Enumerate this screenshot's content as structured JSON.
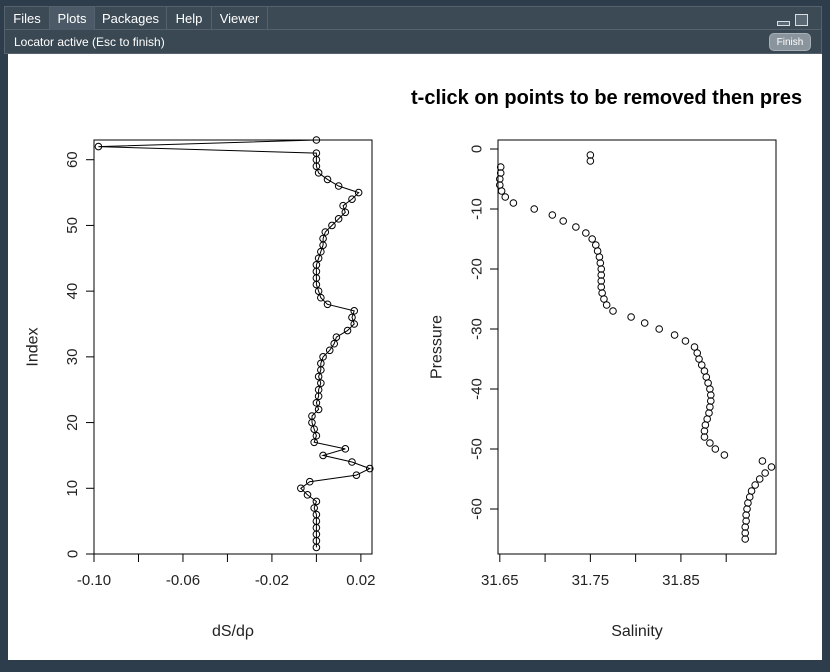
{
  "tabs": [
    {
      "label": "Files",
      "active": false
    },
    {
      "label": "Plots",
      "active": true
    },
    {
      "label": "Packages",
      "active": false
    },
    {
      "label": "Help",
      "active": false
    },
    {
      "label": "Viewer",
      "active": false
    }
  ],
  "status": {
    "text": "Locator active (Esc to finish)",
    "finish_label": "Finish"
  },
  "plot_title": "t-click on points to be removed then pres",
  "colors": {
    "window_bg": "#2d3d4b",
    "tab_active": "#4b5a66",
    "plot_bg": "#ffffff"
  },
  "icons": [
    "minimize-icon",
    "maximize-icon"
  ],
  "chart_data": [
    {
      "type": "line",
      "markers": "open-circle",
      "xlabel": "dS/dρ",
      "ylabel": "Index",
      "xlim": [
        -0.1,
        0.025
      ],
      "ylim": [
        0,
        63
      ],
      "xticks": [
        -0.1,
        -0.06,
        -0.02,
        0.02
      ],
      "xtick_labels": [
        "-0.10",
        "-0.06",
        "-0.02",
        "0.02"
      ],
      "yticks": [
        0,
        10,
        20,
        30,
        40,
        50,
        60
      ],
      "ytick_labels": [
        "0",
        "10",
        "20",
        "30",
        "40",
        "50",
        "60"
      ],
      "minor_xticks": [
        -0.08,
        -0.04,
        0.0
      ],
      "points": [
        [
          0.0,
          1
        ],
        [
          0.0,
          2
        ],
        [
          0.0,
          3
        ],
        [
          0.0,
          4
        ],
        [
          0.0,
          5
        ],
        [
          0.0,
          6
        ],
        [
          -0.001,
          7
        ],
        [
          0.0,
          8
        ],
        [
          -0.004,
          9
        ],
        [
          -0.007,
          10
        ],
        [
          -0.003,
          11
        ],
        [
          0.018,
          12
        ],
        [
          0.024,
          13
        ],
        [
          0.016,
          14
        ],
        [
          0.003,
          15
        ],
        [
          0.013,
          16
        ],
        [
          -0.001,
          17
        ],
        [
          0.0,
          18
        ],
        [
          -0.001,
          19
        ],
        [
          -0.002,
          20
        ],
        [
          -0.002,
          21
        ],
        [
          0.001,
          22
        ],
        [
          0.0,
          23
        ],
        [
          0.001,
          24
        ],
        [
          0.001,
          25
        ],
        [
          0.002,
          26
        ],
        [
          0.001,
          27
        ],
        [
          0.002,
          28
        ],
        [
          0.002,
          29
        ],
        [
          0.003,
          30
        ],
        [
          0.006,
          31
        ],
        [
          0.008,
          32
        ],
        [
          0.009,
          33
        ],
        [
          0.014,
          34
        ],
        [
          0.017,
          35
        ],
        [
          0.016,
          36
        ],
        [
          0.017,
          37
        ],
        [
          0.005,
          38
        ],
        [
          0.002,
          39
        ],
        [
          0.001,
          40
        ],
        [
          0.0,
          41
        ],
        [
          0.0,
          42
        ],
        [
          0.0,
          43
        ],
        [
          0.0,
          44
        ],
        [
          0.001,
          45
        ],
        [
          0.002,
          46
        ],
        [
          0.003,
          47
        ],
        [
          0.003,
          48
        ],
        [
          0.004,
          49
        ],
        [
          0.007,
          50
        ],
        [
          0.01,
          51
        ],
        [
          0.013,
          52
        ],
        [
          0.012,
          53
        ],
        [
          0.016,
          54
        ],
        [
          0.019,
          55
        ],
        [
          0.01,
          56
        ],
        [
          0.005,
          57
        ],
        [
          0.001,
          58
        ],
        [
          0.0,
          59
        ],
        [
          0.0,
          60
        ],
        [
          0.0,
          61
        ],
        [
          -0.098,
          62
        ],
        [
          0.0,
          63
        ]
      ]
    },
    {
      "type": "scatter",
      "markers": "open-circle",
      "xlabel": "Salinity",
      "ylabel": "Pressure",
      "xlim": [
        31.648,
        31.955
      ],
      "ylim": [
        -67.5,
        1.5
      ],
      "xticks": [
        31.65,
        31.75,
        31.85
      ],
      "xtick_labels": [
        "31.65",
        "31.75",
        "31.85"
      ],
      "minor_xticks": [
        31.7,
        31.8,
        31.9
      ],
      "yticks": [
        0,
        -10,
        -20,
        -30,
        -40,
        -50,
        -60
      ],
      "ytick_labels": [
        "0",
        "-10",
        "-20",
        "-30",
        "-40",
        "-50",
        "-60"
      ],
      "points": [
        [
          31.75,
          -1
        ],
        [
          31.75,
          -2
        ],
        [
          31.651,
          -3
        ],
        [
          31.651,
          -4
        ],
        [
          31.65,
          -5
        ],
        [
          31.65,
          -6
        ],
        [
          31.652,
          -7
        ],
        [
          31.656,
          -8
        ],
        [
          31.665,
          -9
        ],
        [
          31.688,
          -10
        ],
        [
          31.708,
          -11
        ],
        [
          31.72,
          -12
        ],
        [
          31.734,
          -13
        ],
        [
          31.745,
          -14
        ],
        [
          31.752,
          -15
        ],
        [
          31.756,
          -16
        ],
        [
          31.758,
          -17
        ],
        [
          31.76,
          -18
        ],
        [
          31.761,
          -19
        ],
        [
          31.762,
          -20
        ],
        [
          31.762,
          -21
        ],
        [
          31.762,
          -22
        ],
        [
          31.762,
          -23
        ],
        [
          31.763,
          -24
        ],
        [
          31.765,
          -25
        ],
        [
          31.768,
          -26
        ],
        [
          31.775,
          -27
        ],
        [
          31.795,
          -28
        ],
        [
          31.81,
          -29
        ],
        [
          31.826,
          -30
        ],
        [
          31.843,
          -31
        ],
        [
          31.855,
          -32
        ],
        [
          31.865,
          -33
        ],
        [
          31.868,
          -34
        ],
        [
          31.87,
          -35
        ],
        [
          31.873,
          -36
        ],
        [
          31.876,
          -37
        ],
        [
          31.878,
          -38
        ],
        [
          31.88,
          -39
        ],
        [
          31.882,
          -40
        ],
        [
          31.883,
          -41
        ],
        [
          31.883,
          -42
        ],
        [
          31.882,
          -43
        ],
        [
          31.881,
          -44
        ],
        [
          31.879,
          -45
        ],
        [
          31.877,
          -46
        ],
        [
          31.876,
          -47
        ],
        [
          31.876,
          -48
        ],
        [
          31.882,
          -49
        ],
        [
          31.888,
          -50
        ],
        [
          31.898,
          -51
        ],
        [
          31.94,
          -52
        ],
        [
          31.95,
          -53
        ],
        [
          31.943,
          -54
        ],
        [
          31.937,
          -55
        ],
        [
          31.932,
          -56
        ],
        [
          31.928,
          -57
        ],
        [
          31.926,
          -58
        ],
        [
          31.924,
          -59
        ],
        [
          31.923,
          -60
        ],
        [
          31.922,
          -61
        ],
        [
          31.922,
          -62
        ],
        [
          31.921,
          -63
        ],
        [
          31.921,
          -64
        ],
        [
          31.921,
          -65
        ]
      ]
    }
  ]
}
